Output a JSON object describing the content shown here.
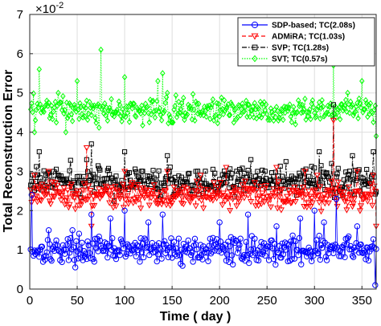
{
  "chart_data": {
    "type": "line",
    "xlabel": "Time ( day )",
    "ylabel": "Total Reconstruction Error",
    "multiplier_base": "×10",
    "multiplier_exp": "-2",
    "xlim": [
      0,
      365
    ],
    "ylim": [
      0,
      7
    ],
    "xticks": [
      0,
      50,
      100,
      150,
      200,
      250,
      300,
      350
    ],
    "xtick_labels": [
      "0",
      "50",
      "100",
      "150",
      "200",
      "250",
      "300",
      "350"
    ],
    "yticks": [
      0,
      1,
      2,
      3,
      4,
      5,
      6,
      7
    ],
    "ytick_labels": [
      "0",
      "1",
      "2",
      "3",
      "4",
      "5",
      "6",
      "7"
    ],
    "grid": true,
    "legend_position": "top-right",
    "series": [
      {
        "name": "SDP-based; TC(2.08s)",
        "color": "#0000ff",
        "marker": "circle",
        "line": "solid",
        "base": 1.0,
        "spread": 0.35,
        "spikes": [
          [
            2,
            2.4
          ],
          [
            20,
            1.5
          ],
          [
            45,
            1.5
          ],
          [
            65,
            1.9
          ],
          [
            85,
            1.8
          ],
          [
            100,
            2.0
          ],
          [
            125,
            1.7
          ],
          [
            140,
            1.9
          ],
          [
            200,
            1.7
          ],
          [
            230,
            1.9
          ],
          [
            260,
            1.6
          ],
          [
            285,
            1.8
          ],
          [
            300,
            2.0
          ],
          [
            310,
            1.7
          ],
          [
            323,
            2.3
          ],
          [
            345,
            1.6
          ],
          [
            364,
            0.1
          ]
        ]
      },
      {
        "name": "ADMiRA; TC(1.03s)",
        "color": "#ff0000",
        "marker": "triangle-down",
        "line": "dashed",
        "base": 2.4,
        "spread": 0.35,
        "spikes": [
          [
            5,
            2.9
          ],
          [
            20,
            3.0
          ],
          [
            60,
            3.6
          ],
          [
            65,
            1.6
          ],
          [
            100,
            3.0
          ],
          [
            145,
            3.0
          ],
          [
            180,
            2.9
          ],
          [
            207,
            3.1
          ],
          [
            260,
            3.1
          ],
          [
            290,
            3.0
          ],
          [
            303,
            2.9
          ],
          [
            320,
            4.3
          ],
          [
            345,
            3.0
          ],
          [
            362,
            2.9
          ],
          [
            365,
            1.6
          ]
        ]
      },
      {
        "name": "SVP; TC(1.28s)",
        "color": "#000000",
        "marker": "square",
        "line": "dashdot",
        "base": 2.75,
        "spread": 0.4,
        "spikes": [
          [
            10,
            3.5
          ],
          [
            25,
            3.0
          ],
          [
            60,
            3.3
          ],
          [
            65,
            3.7
          ],
          [
            100,
            3.5
          ],
          [
            145,
            3.4
          ],
          [
            175,
            3.0
          ],
          [
            233,
            3.3
          ],
          [
            305,
            3.5
          ],
          [
            318,
            3.2
          ],
          [
            320,
            4.7
          ],
          [
            340,
            3.4
          ],
          [
            362,
            3.5
          ]
        ]
      },
      {
        "name": "SVT; TC(0.57s)",
        "color": "#00ff00",
        "marker": "diamond",
        "line": "dotted",
        "base": 4.55,
        "spread": 0.35,
        "spikes": [
          [
            5,
            4.0
          ],
          [
            10,
            5.6
          ],
          [
            18,
            4.8
          ],
          [
            30,
            5.0
          ],
          [
            38,
            4.0
          ],
          [
            50,
            5.3
          ],
          [
            60,
            4.8
          ],
          [
            75,
            6.1
          ],
          [
            88,
            4.5
          ],
          [
            100,
            5.4
          ],
          [
            120,
            4.6
          ],
          [
            135,
            5.3
          ],
          [
            140,
            5.5
          ],
          [
            145,
            5.0
          ],
          [
            200,
            4.4
          ],
          [
            280,
            4.2
          ],
          [
            320,
            5.7
          ],
          [
            335,
            5.0
          ],
          [
            350,
            5.3
          ],
          [
            365,
            3.9
          ]
        ]
      }
    ]
  }
}
